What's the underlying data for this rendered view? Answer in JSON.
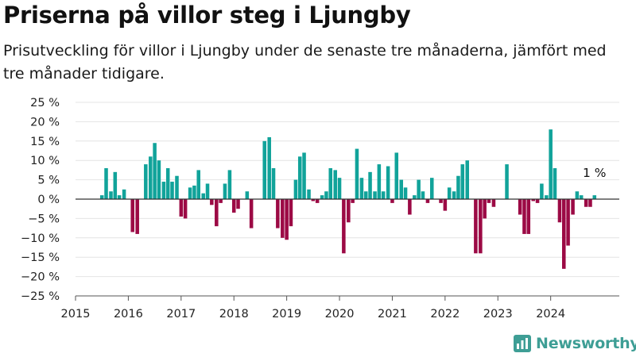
{
  "header": {
    "title": "Priserna på villor steg i Ljungby",
    "subtitle": "Prisutveckling för villor i Ljungby under de senaste tre månaderna, jämfört med tre månader tidigare."
  },
  "brand": {
    "name": "Newsworthy",
    "icon": "newsworthy-logo-icon"
  },
  "chart_data": {
    "type": "bar",
    "title": "",
    "xlabel": "",
    "ylabel": "",
    "ylim": [
      -25,
      25
    ],
    "yticks": [
      25,
      20,
      15,
      10,
      5,
      0,
      -5,
      -10,
      -15,
      -20,
      -25
    ],
    "ytick_labels": [
      "25 %",
      "20 %",
      "15 %",
      "10 %",
      "5 %",
      "0 %",
      "−5 %",
      "−10 %",
      "−15 %",
      "−20 %",
      "−25 %"
    ],
    "xlim": [
      2015,
      2025.3
    ],
    "xticks": [
      2015,
      2016,
      2017,
      2018,
      2019,
      2020,
      2021,
      2022,
      2023,
      2024
    ],
    "grid": true,
    "colors": {
      "positive": "#11a39a",
      "negative": "#9c0a45",
      "axis": "#000000",
      "grid": "#e4e4e4"
    },
    "annotation": {
      "text": "1 %",
      "x": 2024.83
    },
    "series": [
      {
        "x": [
          2015.5,
          2015.58,
          2015.67,
          2015.75,
          2015.83,
          2015.92,
          2016.0,
          2016.08,
          2016.17,
          2016.25,
          2016.33,
          2016.42,
          2016.5,
          2016.58,
          2016.67,
          2016.75,
          2016.83,
          2016.92,
          2017.0,
          2017.08,
          2017.17,
          2017.25,
          2017.33,
          2017.42,
          2017.5,
          2017.58,
          2017.67,
          2017.75,
          2017.83,
          2017.92,
          2018.0,
          2018.08,
          2018.17,
          2018.25,
          2018.33,
          2018.42,
          2018.5,
          2018.58,
          2018.67,
          2018.75,
          2018.83,
          2018.92,
          2019.0,
          2019.08,
          2019.17,
          2019.25,
          2019.33,
          2019.42,
          2019.5,
          2019.58,
          2019.67,
          2019.75,
          2019.83,
          2019.92,
          2020.0,
          2020.08,
          2020.17,
          2020.25,
          2020.33,
          2020.42,
          2020.5,
          2020.58,
          2020.67,
          2020.75,
          2020.83,
          2020.92,
          2021.0,
          2021.08,
          2021.17,
          2021.25,
          2021.33,
          2021.42,
          2021.5,
          2021.58,
          2021.67,
          2021.75,
          2021.83,
          2021.92,
          2022.0,
          2022.08,
          2022.17,
          2022.25,
          2022.33,
          2022.42,
          2022.5,
          2022.58,
          2022.67,
          2022.75,
          2022.83,
          2022.92,
          2023.0,
          2023.08,
          2023.17,
          2023.25,
          2023.33,
          2023.42,
          2023.5,
          2023.58,
          2023.67,
          2023.75,
          2023.83,
          2023.92,
          2024.0,
          2024.08,
          2024.17,
          2024.25,
          2024.33,
          2024.42,
          2024.5,
          2024.58,
          2024.67,
          2024.75,
          2024.83
        ],
        "values": [
          1,
          8,
          2,
          7,
          1,
          2.5,
          null,
          -8.5,
          -9,
          null,
          9,
          11,
          14.5,
          10,
          4.5,
          8,
          4.5,
          6,
          -4.5,
          -5,
          3,
          3.5,
          7.5,
          1.5,
          4,
          -1.5,
          -7,
          -1,
          4,
          7.5,
          -3.5,
          -2.5,
          null,
          2,
          -7.5,
          null,
          null,
          15,
          16,
          8,
          -7.5,
          -10,
          -10.5,
          -7,
          5,
          11,
          12,
          2.5,
          -0.5,
          -1,
          1,
          2,
          8,
          7.5,
          5.5,
          -14,
          -6,
          -1,
          13,
          5.5,
          2,
          7,
          2,
          9,
          2,
          8.5,
          -1,
          12,
          5,
          3,
          -4,
          1,
          5,
          2,
          -1,
          5.5,
          null,
          -1,
          -3,
          3,
          2,
          6,
          9,
          10,
          null,
          -14,
          -14,
          -5,
          -1,
          -2,
          null,
          null,
          9,
          null,
          null,
          -4,
          -9,
          -9,
          -0.5,
          -1,
          4,
          1,
          18,
          8,
          -6,
          -18,
          -12,
          -4,
          2,
          1,
          -2,
          -2,
          1
        ]
      }
    ]
  }
}
